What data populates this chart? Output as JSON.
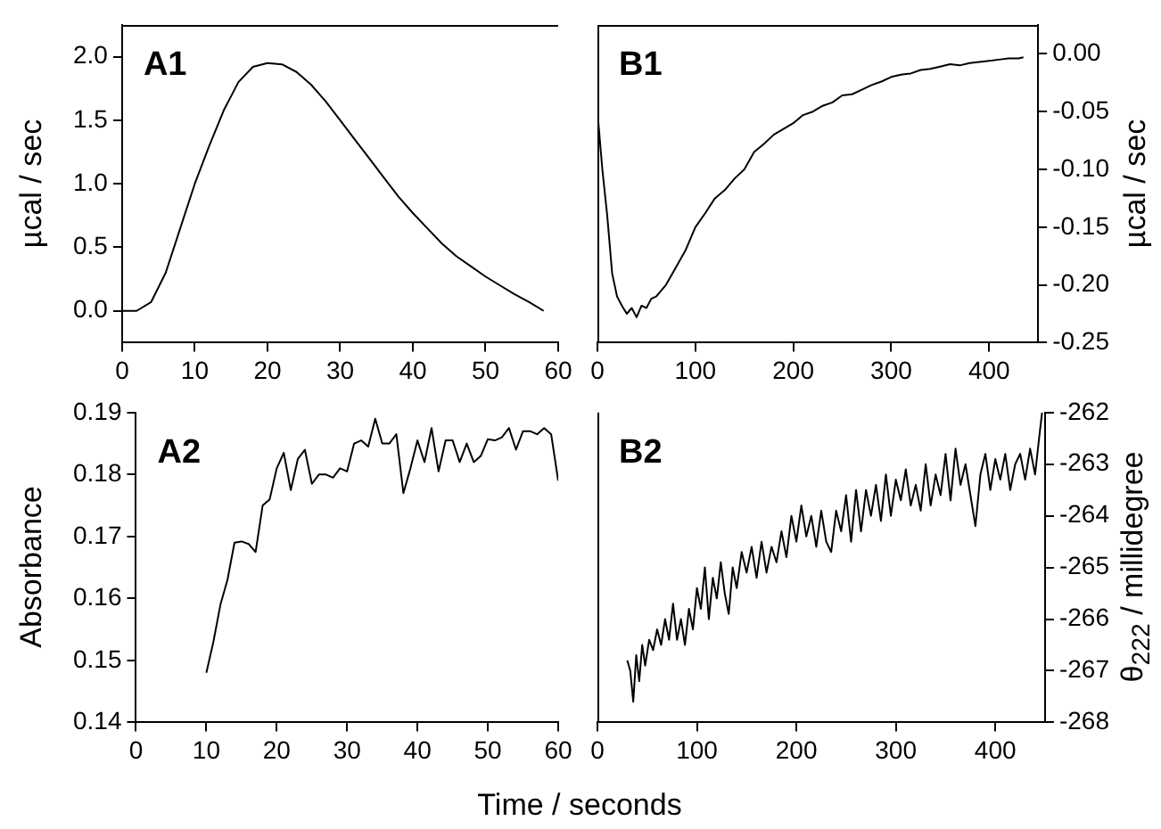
{
  "chart_data": [
    {
      "type": "line",
      "title": "A1",
      "ylabel": "µcal / sec",
      "xlim": [
        0,
        60
      ],
      "xticks": [
        0,
        10,
        20,
        30,
        40,
        50,
        60
      ],
      "ylim": [
        -0.25,
        2.25
      ],
      "yticks": [
        {
          "value": 0,
          "label": "0.0"
        },
        {
          "value": 0.5,
          "label": "0.5"
        },
        {
          "value": 1,
          "label": "1.0"
        },
        {
          "value": 1.5,
          "label": "1.5"
        },
        {
          "value": 2,
          "label": "2.0"
        }
      ],
      "grid": false,
      "legend": false,
      "marker": "none",
      "line_style": "solid",
      "series": [
        {
          "color": "#000000",
          "x": [
            0,
            2,
            4,
            6,
            8,
            10,
            12,
            14,
            16,
            18,
            20,
            22,
            24,
            26,
            28,
            30,
            32,
            34,
            36,
            38,
            40,
            42,
            44,
            46,
            48,
            50,
            52,
            54,
            56,
            58
          ],
          "values": [
            0,
            0,
            0.07,
            0.3,
            0.65,
            1.0,
            1.3,
            1.58,
            1.8,
            1.92,
            1.95,
            1.94,
            1.88,
            1.78,
            1.65,
            1.5,
            1.35,
            1.2,
            1.05,
            0.9,
            0.77,
            0.65,
            0.53,
            0.43,
            0.35,
            0.27,
            0.2,
            0.13,
            0.07,
            0.0
          ]
        }
      ]
    },
    {
      "type": "line",
      "title": "B1",
      "y2label": "µcal / sec",
      "xlim": [
        0,
        450
      ],
      "xticks": [
        0,
        100,
        200,
        300,
        400
      ],
      "y2lim": [
        -0.25,
        0.025
      ],
      "y2ticks": [
        {
          "value": 0,
          "label": "0.00"
        },
        {
          "value": -0.05,
          "label": "-0.05"
        },
        {
          "value": -0.1,
          "label": "-0.10"
        },
        {
          "value": -0.15,
          "label": "-0.15"
        },
        {
          "value": -0.2,
          "label": "-0.20"
        },
        {
          "value": -0.25,
          "label": "-0.25"
        }
      ],
      "grid": false,
      "legend": false,
      "marker": "none",
      "line_style": "solid",
      "series": [
        {
          "color": "#000000",
          "axis": "y2",
          "x": [
            0,
            5,
            10,
            15,
            20,
            25,
            30,
            35,
            40,
            45,
            50,
            55,
            60,
            70,
            80,
            90,
            100,
            110,
            120,
            130,
            140,
            150,
            160,
            170,
            180,
            190,
            200,
            210,
            220,
            230,
            240,
            250,
            260,
            270,
            280,
            290,
            300,
            310,
            320,
            330,
            340,
            350,
            360,
            370,
            380,
            390,
            400,
            410,
            420,
            430,
            435
          ],
          "values": [
            -0.05,
            -0.1,
            -0.14,
            -0.19,
            -0.21,
            -0.218,
            -0.225,
            -0.22,
            -0.228,
            -0.218,
            -0.22,
            -0.212,
            -0.21,
            -0.2,
            -0.185,
            -0.17,
            -0.15,
            -0.138,
            -0.125,
            -0.118,
            -0.108,
            -0.1,
            -0.085,
            -0.078,
            -0.07,
            -0.065,
            -0.06,
            -0.053,
            -0.05,
            -0.045,
            -0.042,
            -0.036,
            -0.035,
            -0.031,
            -0.027,
            -0.024,
            -0.02,
            -0.018,
            -0.017,
            -0.014,
            -0.013,
            -0.011,
            -0.009,
            -0.01,
            -0.008,
            -0.007,
            -0.006,
            -0.005,
            -0.004,
            -0.004,
            -0.003
          ]
        }
      ]
    },
    {
      "type": "line",
      "title": "A2",
      "xlabel": "Time / seconds",
      "ylabel": "Absorbance",
      "xlim": [
        0,
        60
      ],
      "xticks": [
        0,
        10,
        20,
        30,
        40,
        50,
        60
      ],
      "ylim": [
        0.14,
        0.19
      ],
      "yticks": [
        0.14,
        0.15,
        0.16,
        0.17,
        0.18,
        0.19
      ],
      "grid": false,
      "legend": false,
      "marker": "none",
      "line_style": "solid",
      "series": [
        {
          "color": "#000000",
          "x": [
            10,
            11,
            12,
            13,
            14,
            15,
            16,
            17,
            18,
            19,
            20,
            21,
            22,
            23,
            24,
            25,
            26,
            27,
            28,
            29,
            30,
            31,
            32,
            33,
            34,
            35,
            36,
            37,
            38,
            39,
            40,
            41,
            42,
            43,
            44,
            45,
            46,
            47,
            48,
            49,
            50,
            51,
            52,
            53,
            54,
            55,
            56,
            57,
            58,
            59,
            60
          ],
          "values": [
            0.148,
            0.153,
            0.159,
            0.163,
            0.169,
            0.1692,
            0.1688,
            0.1675,
            0.175,
            0.176,
            0.181,
            0.1835,
            0.1775,
            0.1825,
            0.184,
            0.1785,
            0.18,
            0.18,
            0.1795,
            0.181,
            0.1805,
            0.185,
            0.1855,
            0.1845,
            0.189,
            0.185,
            0.185,
            0.1865,
            0.177,
            0.181,
            0.1855,
            0.182,
            0.1875,
            0.1805,
            0.1855,
            0.1855,
            0.182,
            0.185,
            0.182,
            0.183,
            0.1857,
            0.1855,
            0.186,
            0.1875,
            0.184,
            0.187,
            0.187,
            0.1865,
            0.1875,
            0.1865,
            0.179
          ]
        }
      ]
    },
    {
      "type": "line",
      "title": "B2",
      "y2label": "θ$_{222}$ / millidegree",
      "xlim": [
        0,
        450
      ],
      "xticks": [
        0,
        100,
        200,
        300,
        400
      ],
      "y2lim": [
        -268,
        -262
      ],
      "y2ticks": [
        -268,
        -267,
        -266,
        -265,
        -264,
        -263,
        -262
      ],
      "grid": false,
      "legend": false,
      "marker": "none",
      "line_style": "solid",
      "series": [
        {
          "color": "#000000",
          "axis": "y2",
          "x": [
            30,
            33,
            36,
            39,
            42,
            45,
            48,
            52,
            56,
            60,
            64,
            68,
            72,
            76,
            80,
            84,
            88,
            92,
            96,
            100,
            104,
            108,
            112,
            116,
            120,
            124,
            128,
            132,
            136,
            140,
            145,
            150,
            155,
            160,
            165,
            170,
            175,
            180,
            185,
            190,
            195,
            200,
            205,
            210,
            215,
            220,
            225,
            230,
            235,
            240,
            245,
            250,
            255,
            260,
            265,
            270,
            275,
            280,
            285,
            290,
            295,
            300,
            305,
            310,
            315,
            320,
            325,
            330,
            335,
            340,
            345,
            350,
            355,
            360,
            365,
            370,
            375,
            380,
            385,
            390,
            395,
            400,
            405,
            410,
            415,
            420,
            425,
            430,
            435,
            440,
            444,
            447
          ],
          "values": [
            -266.8,
            -267.0,
            -267.6,
            -266.7,
            -267.2,
            -266.5,
            -266.9,
            -266.4,
            -266.6,
            -266.2,
            -266.5,
            -266.0,
            -266.4,
            -265.7,
            -266.4,
            -266.0,
            -266.5,
            -265.8,
            -266.2,
            -265.4,
            -265.8,
            -265.0,
            -266.0,
            -265.2,
            -265.6,
            -264.9,
            -265.5,
            -265.9,
            -265.0,
            -265.4,
            -264.7,
            -265.1,
            -264.6,
            -265.2,
            -264.5,
            -265.1,
            -264.6,
            -264.9,
            -264.3,
            -264.8,
            -264.0,
            -264.5,
            -263.8,
            -264.4,
            -264.0,
            -264.6,
            -263.9,
            -264.5,
            -264.7,
            -263.9,
            -264.3,
            -263.6,
            -264.5,
            -263.5,
            -264.3,
            -263.5,
            -264.0,
            -263.4,
            -264.1,
            -263.2,
            -264.0,
            -263.3,
            -263.7,
            -263.1,
            -263.8,
            -263.4,
            -263.9,
            -263.0,
            -263.8,
            -263.2,
            -263.6,
            -262.8,
            -263.7,
            -262.7,
            -263.4,
            -263.0,
            -263.6,
            -264.2,
            -263.2,
            -262.8,
            -263.5,
            -262.9,
            -263.3,
            -262.8,
            -263.5,
            -263.0,
            -262.8,
            -263.3,
            -262.7,
            -263.2,
            -262.5,
            -262.0
          ]
        }
      ]
    }
  ]
}
